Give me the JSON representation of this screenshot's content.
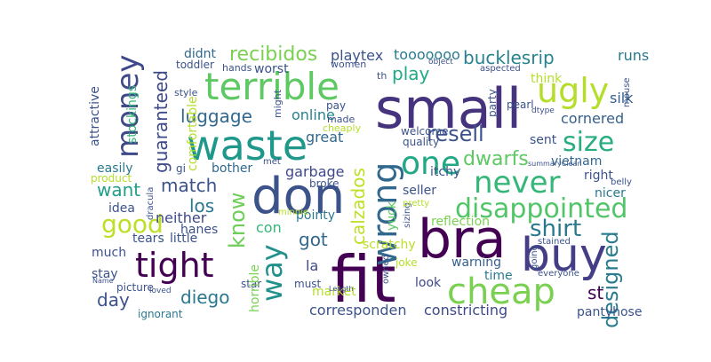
{
  "chart_data": {
    "type": "wordcloud",
    "colormap": "viridis",
    "background": "#ffffff",
    "words": [
      {
        "text": "small",
        "color": "#46337e"
      },
      {
        "text": "fit",
        "color": "#440154"
      },
      {
        "text": "don",
        "color": "#3b528b"
      },
      {
        "text": "bra",
        "color": "#440154"
      },
      {
        "text": "buy",
        "color": "#433e85"
      },
      {
        "text": "waste",
        "color": "#1f988b"
      },
      {
        "text": "terrible",
        "color": "#5ec962"
      },
      {
        "text": "ugly",
        "color": "#b5de2b"
      },
      {
        "text": "cheap",
        "color": "#7ad151"
      },
      {
        "text": "tight",
        "color": "#440154"
      },
      {
        "text": "never",
        "color": "#35b779"
      },
      {
        "text": "wrong",
        "color": "#31688e"
      },
      {
        "text": "one",
        "color": "#22a884"
      },
      {
        "text": "money",
        "color": "#3e4989"
      },
      {
        "text": "way",
        "color": "#21918c"
      },
      {
        "text": "disappointed",
        "color": "#52c569"
      },
      {
        "text": "shirt",
        "color": "#2a788e"
      },
      {
        "text": "size",
        "color": "#27ad81"
      },
      {
        "text": "good",
        "color": "#bddf26"
      },
      {
        "text": "know",
        "color": "#6ece58"
      },
      {
        "text": "designed",
        "color": "#287c8e"
      },
      {
        "text": "calzados",
        "color": "#bddf26"
      },
      {
        "text": "resell",
        "color": "#3b528b"
      },
      {
        "text": "dwarfs",
        "color": "#5ec962"
      },
      {
        "text": "recibidos",
        "color": "#7ad151"
      },
      {
        "text": "bucklesrip",
        "color": "#26828e"
      },
      {
        "text": "guaranteed",
        "color": "#3e4989"
      },
      {
        "text": "luggage",
        "color": "#31688e"
      },
      {
        "text": "match",
        "color": "#3b528b"
      },
      {
        "text": "los",
        "color": "#2a788e"
      },
      {
        "text": "want",
        "color": "#1f9e89"
      },
      {
        "text": "got",
        "color": "#31688e"
      },
      {
        "text": "play",
        "color": "#22a884"
      },
      {
        "text": "diego",
        "color": "#2a788e"
      },
      {
        "text": "day",
        "color": "#3b528b"
      },
      {
        "text": "st",
        "color": "#440154"
      },
      {
        "text": "la",
        "color": "#3e4989"
      },
      {
        "text": "playtex",
        "color": "#3b528b"
      },
      {
        "text": "tooooooo",
        "color": "#287c8e"
      },
      {
        "text": "runs",
        "color": "#2a788e"
      },
      {
        "text": "silk",
        "color": "#355f8d"
      },
      {
        "text": "online",
        "color": "#26828e"
      },
      {
        "text": "great",
        "color": "#31688e"
      },
      {
        "text": "garbage",
        "color": "#3e4989"
      },
      {
        "text": "con",
        "color": "#35b779"
      },
      {
        "text": "neither",
        "color": "#3e4989"
      },
      {
        "text": "didnt",
        "color": "#31688e"
      },
      {
        "text": "worst",
        "color": "#3b528b"
      },
      {
        "text": "think",
        "color": "#b5de2b"
      },
      {
        "text": "cornered",
        "color": "#355f8d"
      },
      {
        "text": "sent",
        "color": "#3b528b"
      },
      {
        "text": "vietnam",
        "color": "#31688e"
      },
      {
        "text": "right",
        "color": "#3b528b"
      },
      {
        "text": "nicer",
        "color": "#2a788e"
      },
      {
        "text": "seller",
        "color": "#3b528b"
      },
      {
        "text": "itchy",
        "color": "#3b528b"
      },
      {
        "text": "corresponden",
        "color": "#3b528b"
      },
      {
        "text": "constricting",
        "color": "#3e4989"
      },
      {
        "text": "pantyhose",
        "color": "#3b528b"
      },
      {
        "text": "warning",
        "color": "#355f8d"
      },
      {
        "text": "time",
        "color": "#2a788e"
      },
      {
        "text": "look",
        "color": "#3e4989"
      },
      {
        "text": "joke",
        "color": "#b5de2b"
      },
      {
        "text": "scratchy",
        "color": "#bddf26"
      },
      {
        "text": "reflection",
        "color": "#7ad151"
      },
      {
        "text": "yuck",
        "color": "#5ec962"
      },
      {
        "text": "pointy",
        "color": "#2a788e"
      },
      {
        "text": "broke",
        "color": "#3b528b"
      },
      {
        "text": "bother",
        "color": "#31688e"
      },
      {
        "text": "easily",
        "color": "#2a788e"
      },
      {
        "text": "idea",
        "color": "#3b528b"
      },
      {
        "text": "hanes",
        "color": "#3b528b"
      },
      {
        "text": "tears",
        "color": "#3b528b"
      },
      {
        "text": "little",
        "color": "#3b528b"
      },
      {
        "text": "much",
        "color": "#3b528b"
      },
      {
        "text": "stay",
        "color": "#3b528b"
      },
      {
        "text": "picture",
        "color": "#3b528b"
      },
      {
        "text": "ignorant",
        "color": "#2a788e"
      },
      {
        "text": "star",
        "color": "#3b528b"
      },
      {
        "text": "horrible",
        "color": "#7ad151"
      },
      {
        "text": "must",
        "color": "#3b528b"
      },
      {
        "text": "market",
        "color": "#b5de2b"
      },
      {
        "text": "attractive",
        "color": "#3b528b"
      },
      {
        "text": "stockings",
        "color": "#35b779"
      },
      {
        "text": "comfortable",
        "color": "#b5de2b"
      },
      {
        "text": "gi",
        "color": "#3b528b"
      },
      {
        "text": "pay",
        "color": "#3b528b"
      },
      {
        "text": "made",
        "color": "#3b528b"
      },
      {
        "text": "welcome",
        "color": "#3b528b"
      },
      {
        "text": "quality",
        "color": "#3b528b"
      },
      {
        "text": "pearl",
        "color": "#3b528b"
      },
      {
        "text": "party",
        "color": "#3b528b"
      },
      {
        "text": "women",
        "color": "#3b528b"
      },
      {
        "text": "hands",
        "color": "#3b528b"
      },
      {
        "text": "toddler",
        "color": "#3b528b"
      },
      {
        "text": "style",
        "color": "#3b528b"
      },
      {
        "text": "might",
        "color": "#3b528b"
      },
      {
        "text": "cheaply",
        "color": "#b5de2b"
      },
      {
        "text": "th",
        "color": "#3b528b"
      },
      {
        "text": "aspected",
        "color": "#3b528b"
      },
      {
        "text": "object",
        "color": "#3b528b"
      },
      {
        "text": "dtype",
        "color": "#3b528b"
      },
      {
        "text": "mouse",
        "color": "#3b528b"
      },
      {
        "text": "summaryClean",
        "color": "#3b528b"
      },
      {
        "text": "belly",
        "color": "#3b528b"
      },
      {
        "text": "product",
        "color": "#b5de2b"
      },
      {
        "text": "dracula",
        "color": "#3b528b"
      },
      {
        "text": "minnie",
        "color": "#b5de2b"
      },
      {
        "text": "met",
        "color": "#3b528b"
      },
      {
        "text": "sizing",
        "color": "#3b528b"
      },
      {
        "text": "pretty",
        "color": "#b5de2b"
      },
      {
        "text": "stained",
        "color": "#3b528b"
      },
      {
        "text": "going",
        "color": "#3b528b"
      },
      {
        "text": "everyone",
        "color": "#3b528b"
      },
      {
        "text": "owned",
        "color": "#3b528b"
      },
      {
        "text": "Length",
        "color": "#3b528b"
      },
      {
        "text": "Name",
        "color": "#3b528b"
      },
      {
        "text": "loved",
        "color": "#3b528b"
      }
    ]
  }
}
